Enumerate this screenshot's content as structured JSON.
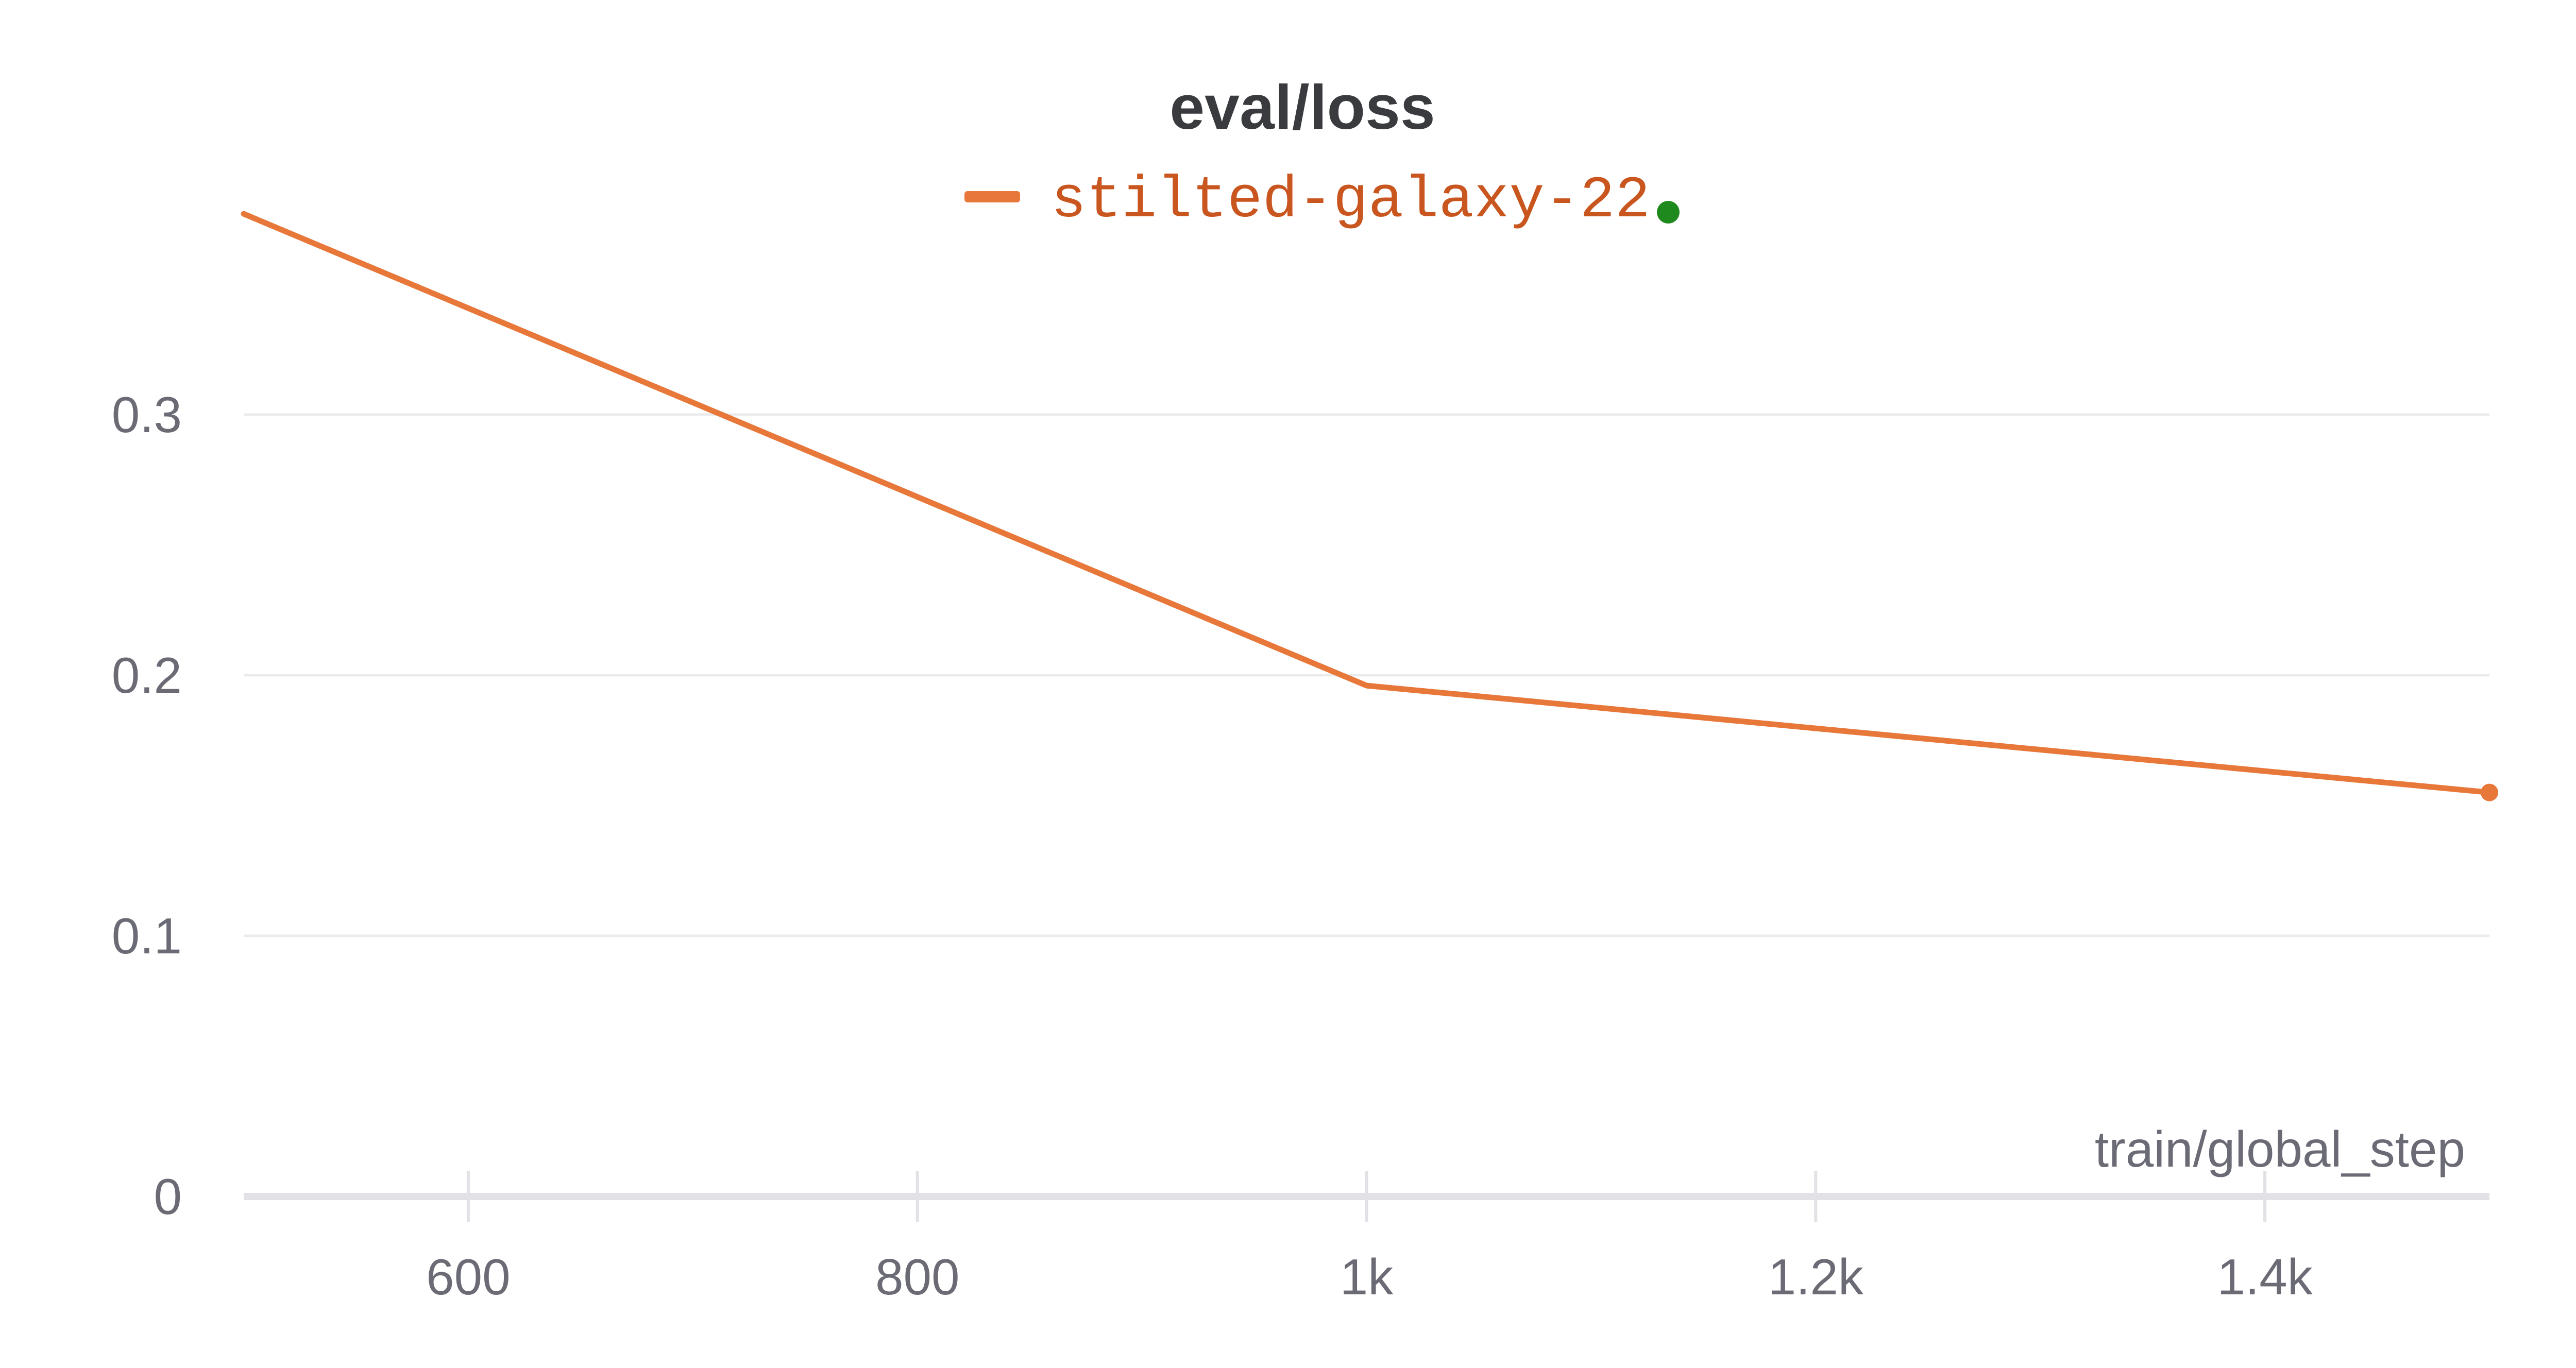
{
  "chart_data": {
    "type": "line",
    "title": "eval/loss",
    "xlabel": "train/global_step",
    "ylabel": "",
    "xlim": [
      500,
      1500
    ],
    "ylim": [
      0,
      0.38
    ],
    "x_ticks": [
      {
        "value": 600,
        "label": "600"
      },
      {
        "value": 800,
        "label": "800"
      },
      {
        "value": 1000,
        "label": "1k"
      },
      {
        "value": 1200,
        "label": "1.2k"
      },
      {
        "value": 1400,
        "label": "1.4k"
      }
    ],
    "y_ticks": [
      {
        "value": 0,
        "label": "0"
      },
      {
        "value": 0.1,
        "label": "0.1"
      },
      {
        "value": 0.2,
        "label": "0.2"
      },
      {
        "value": 0.3,
        "label": "0.3"
      }
    ],
    "grid": true,
    "legend_position": "top-center",
    "series": [
      {
        "name": "stilted-galaxy-22",
        "color": "#e8773a",
        "label_color": "#c9551f",
        "status_dot_color": "#1e8a1e",
        "x": [
          500,
          1000,
          1500
        ],
        "y": [
          0.377,
          0.196,
          0.155
        ]
      }
    ]
  }
}
